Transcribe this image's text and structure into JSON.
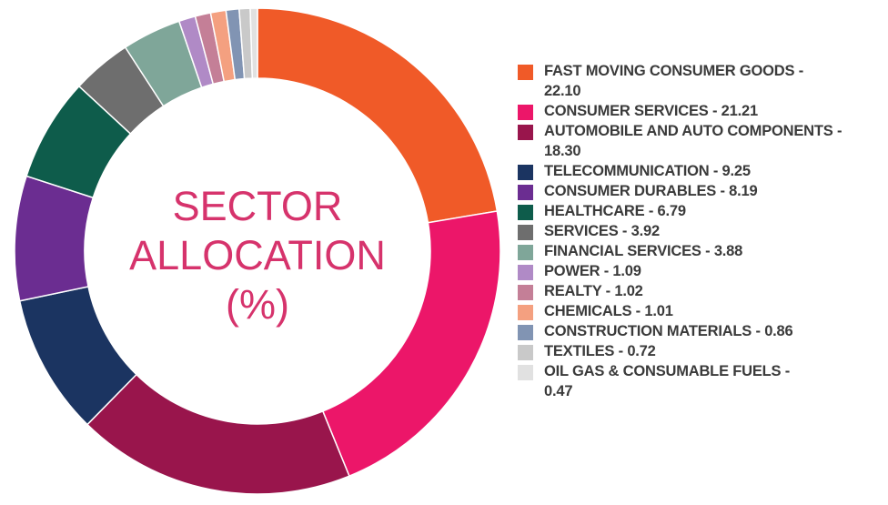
{
  "chart_data": {
    "type": "pie",
    "title_lines": [
      "SECTOR",
      "ALLOCATION",
      "(%)"
    ],
    "series": [
      {
        "label": "FAST MOVING CONSUMER GOODS",
        "value": 22.1,
        "color": "#f05a28"
      },
      {
        "label": "CONSUMER SERVICES",
        "value": 21.21,
        "color": "#ec1669"
      },
      {
        "label": "AUTOMOBILE AND AUTO COMPONENTS",
        "value": 18.3,
        "color": "#99154c"
      },
      {
        "label": "TELECOMMUNICATION",
        "value": 9.25,
        "color": "#1b3461"
      },
      {
        "label": "CONSUMER DURABLES",
        "value": 8.19,
        "color": "#6b2d91"
      },
      {
        "label": "HEALTHCARE",
        "value": 6.79,
        "color": "#0e5c4b"
      },
      {
        "label": "SERVICES",
        "value": 3.92,
        "color": "#6e6e6e"
      },
      {
        "label": "FINANCIAL SERVICES",
        "value": 3.88,
        "color": "#7fa699"
      },
      {
        "label": "POWER",
        "value": 1.09,
        "color": "#b08ac6"
      },
      {
        "label": "REALTY",
        "value": 1.02,
        "color": "#c47f97"
      },
      {
        "label": "CHEMICALS",
        "value": 1.01,
        "color": "#f4a080"
      },
      {
        "label": "CONSTRUCTION MATERIALS",
        "value": 0.86,
        "color": "#8194b3"
      },
      {
        "label": "TEXTILES",
        "value": 0.72,
        "color": "#c9c9c9"
      },
      {
        "label": "OIL GAS & CONSUMABLE FUELS",
        "value": 0.47,
        "color": "#e1e1e1"
      }
    ],
    "legend_position": "right"
  }
}
